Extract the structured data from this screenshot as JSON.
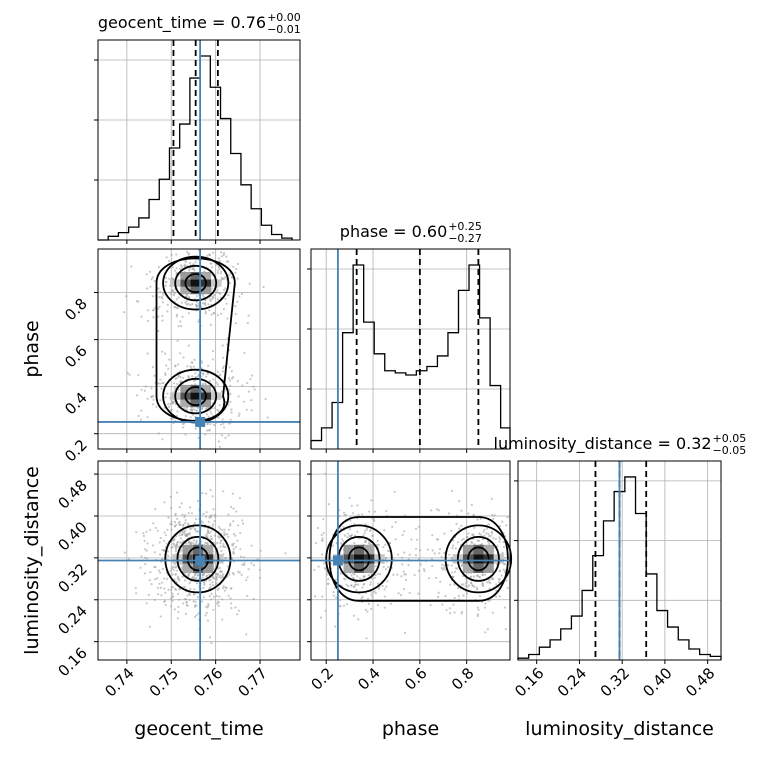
{
  "chart_data": {
    "type": "corner",
    "parameters": [
      "geocent_time",
      "phase",
      "luminosity_distance"
    ],
    "truths": {
      "geocent_time": 0.7565,
      "phase": 0.25,
      "luminosity_distance": 0.315
    },
    "axis_labels": {
      "geocent_time": "geocent_time",
      "phase": "phase",
      "luminosity_distance": "luminosity_distance"
    },
    "ticks": {
      "geocent_time": {
        "values": [
          0.74,
          0.75,
          0.76,
          0.77
        ],
        "labels": [
          "0.74",
          "0.75",
          "0.76",
          "0.77"
        ]
      },
      "phase": {
        "values": [
          0.2,
          0.4,
          0.6,
          0.8
        ],
        "labels": [
          "0.2",
          "0.4",
          "0.6",
          "0.8"
        ]
      },
      "luminosity_distance": {
        "values": [
          0.16,
          0.24,
          0.32,
          0.4,
          0.48
        ],
        "labels": [
          "0.16",
          "0.24",
          "0.32",
          "0.40",
          "0.48"
        ]
      }
    },
    "ranges": {
      "geocent_time": [
        0.7335,
        0.779
      ],
      "phase": [
        0.135,
        0.985
      ],
      "luminosity_distance": [
        0.125,
        0.505
      ]
    },
    "titles": [
      {
        "param": "geocent_time",
        "text": "geocent_time = 0.76",
        "plus": "+0.00",
        "minus": "−0.01"
      },
      {
        "param": "phase",
        "text": "phase = 0.60",
        "plus": "+0.25",
        "minus": "−0.27"
      },
      {
        "param": "luminosity_distance",
        "text": "luminosity_distance = 0.32",
        "plus": "+0.05",
        "minus": "−0.05"
      }
    ],
    "histograms": {
      "geocent_time": {
        "quantiles": [
          0.7505,
          0.7555,
          0.7605
        ],
        "bin_edges": [
          0.7335,
          0.7358,
          0.7381,
          0.7404,
          0.7427,
          0.745,
          0.7473,
          0.7496,
          0.7519,
          0.7542,
          0.7565,
          0.7588,
          0.7611,
          0.7634,
          0.7657,
          0.768,
          0.7703,
          0.7726,
          0.7749,
          0.7772
        ],
        "heights": [
          0,
          0.02,
          0.04,
          0.07,
          0.12,
          0.22,
          0.33,
          0.5,
          0.63,
          0.88,
          1.0,
          0.83,
          0.66,
          0.47,
          0.3,
          0.17,
          0.08,
          0.03,
          0.01
        ]
      },
      "phase": {
        "quantiles": [
          0.33,
          0.6,
          0.85
        ],
        "bin_edges": [
          0.135,
          0.18,
          0.225,
          0.27,
          0.315,
          0.36,
          0.405,
          0.45,
          0.495,
          0.54,
          0.585,
          0.63,
          0.675,
          0.72,
          0.765,
          0.81,
          0.855,
          0.9,
          0.945,
          0.985
        ],
        "heights": [
          0.04,
          0.1,
          0.22,
          0.55,
          0.87,
          0.6,
          0.45,
          0.37,
          0.36,
          0.35,
          0.37,
          0.39,
          0.44,
          0.55,
          0.75,
          0.87,
          0.62,
          0.3,
          0.1
        ]
      },
      "luminosity_distance": {
        "quantiles": [
          0.27,
          0.315,
          0.365
        ],
        "bin_edges": [
          0.125,
          0.145,
          0.165,
          0.185,
          0.205,
          0.225,
          0.245,
          0.265,
          0.285,
          0.305,
          0.325,
          0.345,
          0.365,
          0.385,
          0.405,
          0.425,
          0.445,
          0.465,
          0.485,
          0.505
        ],
        "heights": [
          0.01,
          0.03,
          0.07,
          0.11,
          0.17,
          0.24,
          0.38,
          0.57,
          0.76,
          0.92,
          1.0,
          0.8,
          0.47,
          0.27,
          0.18,
          0.11,
          0.06,
          0.03,
          0.02
        ]
      }
    },
    "grid": true
  }
}
